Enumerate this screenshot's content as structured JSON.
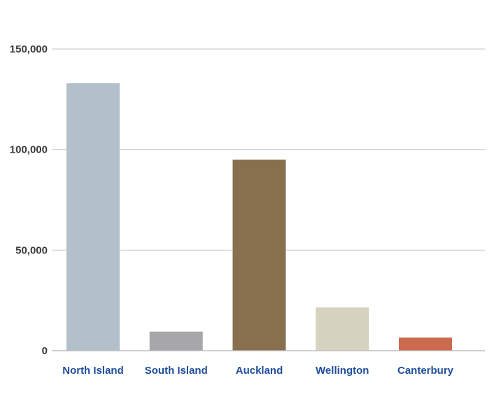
{
  "chart_data": {
    "type": "bar",
    "title": "",
    "xlabel": "",
    "ylabel": "",
    "categories": [
      "North Island",
      "South Island",
      "Auckland",
      "Wellington",
      "Canterbury"
    ],
    "values": [
      133000,
      9500,
      95000,
      21500,
      6500
    ],
    "colors": [
      "#b3c0c9",
      "#a7a7aa",
      "#88704e",
      "#d6d2c0",
      "#cb6a4d"
    ],
    "ylim": [
      0,
      150000
    ],
    "yticks": [
      0,
      50000,
      100000,
      150000
    ],
    "ytick_labels": [
      "0",
      "50,000",
      "100,000",
      "150,000"
    ],
    "grid": true,
    "tick_color": "#3a3a3a",
    "category_label_color": "#1f4e9c",
    "grid_color": "#cfcfcf"
  }
}
